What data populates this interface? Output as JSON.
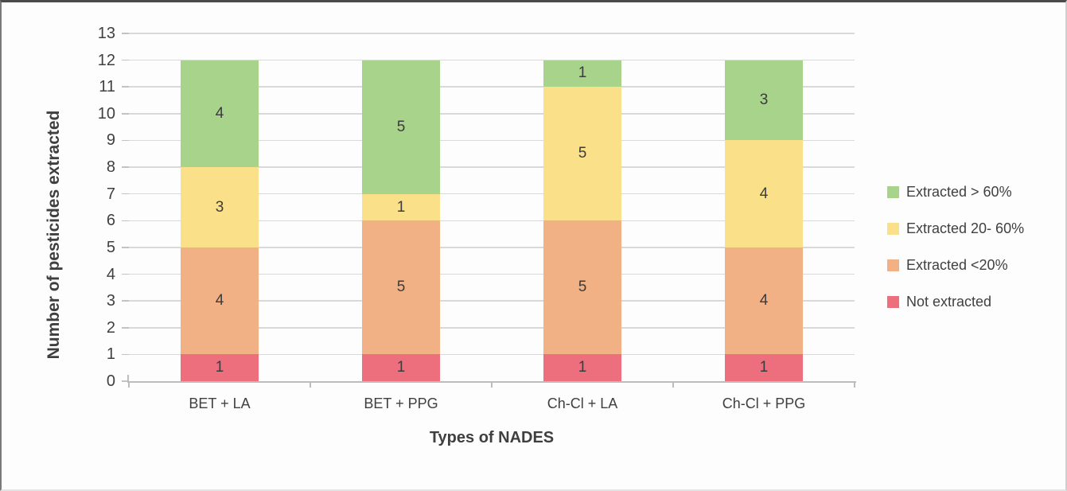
{
  "chart_data": {
    "type": "bar",
    "stacked": true,
    "title": "",
    "xlabel": "Types of NADES",
    "ylabel": "Number of pesticides extracted",
    "categories": [
      "BET + LA",
      "BET + PPG",
      "Ch-Cl + LA",
      "Ch-Cl + PPG"
    ],
    "series": [
      {
        "name": "Not extracted",
        "color": "#ed6f7e",
        "values": [
          1,
          1,
          1,
          1
        ]
      },
      {
        "name": "Extracted <20%",
        "color": "#f2b184",
        "values": [
          4,
          5,
          5,
          4
        ]
      },
      {
        "name": "Extracted 20- 60%",
        "color": "#fbe08a",
        "values": [
          3,
          1,
          5,
          4
        ]
      },
      {
        "name": "Extracted > 60%",
        "color": "#a8d38b",
        "values": [
          4,
          5,
          1,
          3
        ]
      }
    ],
    "legend": {
      "position": "right",
      "entries_top_to_bottom": [
        {
          "label": "Extracted > 60%",
          "color": "#a8d38b"
        },
        {
          "label": "Extracted 20- 60%",
          "color": "#fbe08a"
        },
        {
          "label": "Extracted <20%",
          "color": "#f2b184"
        },
        {
          "label": "Not extracted",
          "color": "#ed6f7e"
        }
      ]
    },
    "ylim": [
      0,
      13
    ],
    "yticks": [
      0,
      1,
      2,
      3,
      4,
      5,
      6,
      7,
      8,
      9,
      10,
      11,
      12,
      13
    ],
    "grid": true,
    "bar_value_labels": true,
    "colors": {
      "text": "#404040",
      "gridline": "#d9d9d9",
      "axis": "#bdbdbd",
      "background": "#fdfdfd"
    }
  }
}
